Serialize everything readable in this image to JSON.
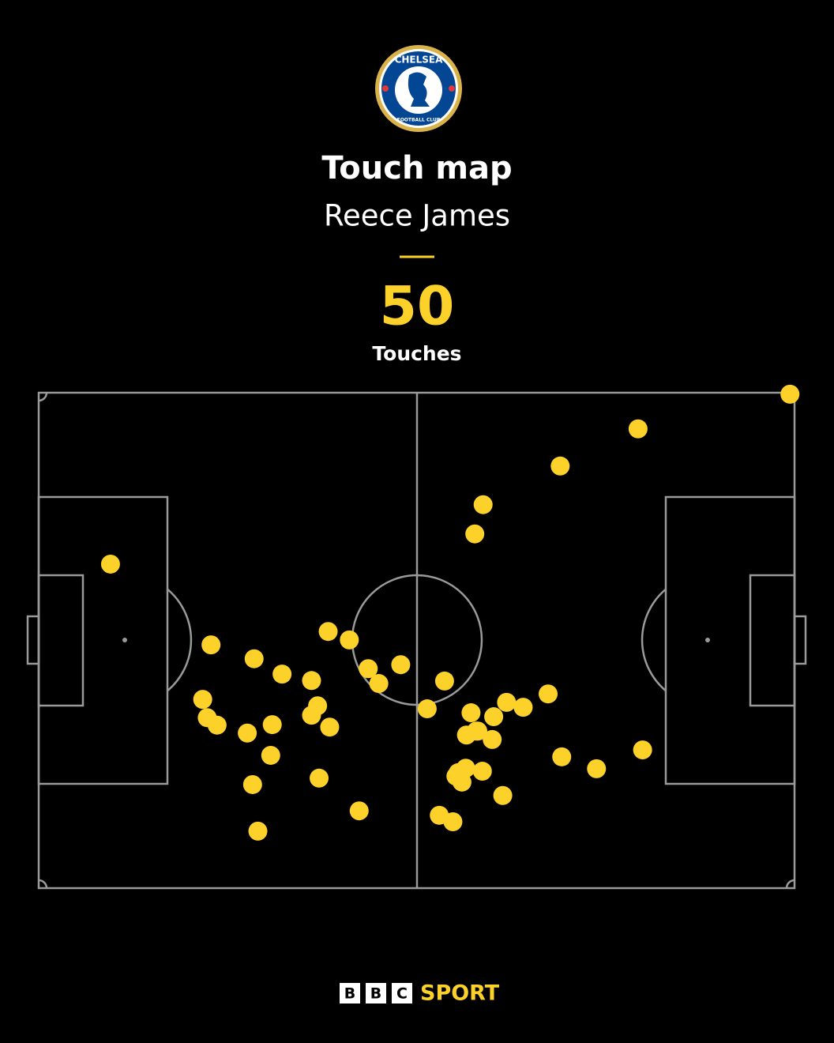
{
  "chart_data": {
    "type": "scatter",
    "title": "Touch map",
    "subtitle": "Reece James",
    "total": 50,
    "total_label": "Touches",
    "logo": {
      "top_text": "CHELSEA",
      "bottom_text": "FOOTBALL CLUB"
    },
    "brand": {
      "letters": [
        "B",
        "B",
        "C"
      ],
      "name": "SPORT"
    },
    "color": "#fcd12a",
    "xlim": [
      0,
      100
    ],
    "ylim": [
      0,
      100
    ],
    "x": [
      99.4,
      79.3,
      69.0,
      58.8,
      57.7,
      9.5,
      38.3,
      41.1,
      22.8,
      28.5,
      47.9,
      43.6,
      32.2,
      45.0,
      36.1,
      53.7,
      67.4,
      21.7,
      36.9,
      61.9,
      64.1,
      51.4,
      57.2,
      60.2,
      36.1,
      22.3,
      23.6,
      30.9,
      38.5,
      27.6,
      57.9,
      56.6,
      60.0,
      30.7,
      69.2,
      73.8,
      79.9,
      56.5,
      58.7,
      55.2,
      56.0,
      37.1,
      28.3,
      61.4,
      42.4,
      53.0,
      54.8,
      29.0,
      58.1,
      55.5
    ],
    "values": [
      99.7,
      92.7,
      85.2,
      77.4,
      71.5,
      65.4,
      51.8,
      50.1,
      49.1,
      46.3,
      45.1,
      44.3,
      43.2,
      41.3,
      41.9,
      41.8,
      39.2,
      38.1,
      36.8,
      37.5,
      36.5,
      36.2,
      35.4,
      34.6,
      34.9,
      34.4,
      32.9,
      33.0,
      32.5,
      31.3,
      31.7,
      30.9,
      30.0,
      26.8,
      26.5,
      24.1,
      27.9,
      24.2,
      23.6,
      22.6,
      21.4,
      22.2,
      20.9,
      18.7,
      15.6,
      14.7,
      13.4,
      11.5,
      31.7,
      23.3
    ]
  }
}
